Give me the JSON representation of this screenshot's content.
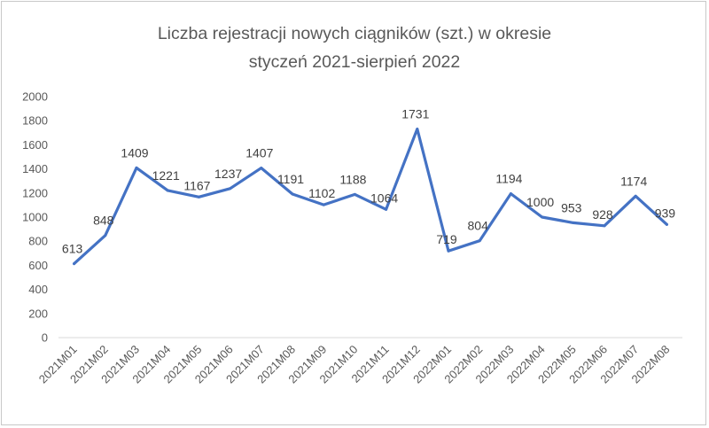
{
  "chart_data": {
    "type": "line",
    "title_line1": "Liczba rejestracji nowych  ciągników (szt.) w okresie",
    "title_line2": "styczeń 2021-sierpień 2022",
    "xlabel": "",
    "ylabel": "",
    "ylim": [
      0,
      2000
    ],
    "yticks": [
      0,
      200,
      400,
      600,
      800,
      1000,
      1200,
      1400,
      1600,
      1800,
      2000
    ],
    "grid": false,
    "legend": "none",
    "line_color": "#4472c4",
    "categories": [
      "2021M01",
      "2021M02",
      "2021M03",
      "2021M04",
      "2021M05",
      "2021M06",
      "2021M07",
      "2021M08",
      "2021M09",
      "2021M10",
      "2021M11",
      "2021M12",
      "2022M01",
      "2022M02",
      "2022M03",
      "2022M04",
      "2022M05",
      "2022M06",
      "2022M07",
      "2022M08"
    ],
    "values": [
      613,
      848,
      1409,
      1221,
      1167,
      1237,
      1407,
      1191,
      1102,
      1188,
      1064,
      1731,
      719,
      804,
      1194,
      1000,
      953,
      928,
      1174,
      939
    ]
  }
}
